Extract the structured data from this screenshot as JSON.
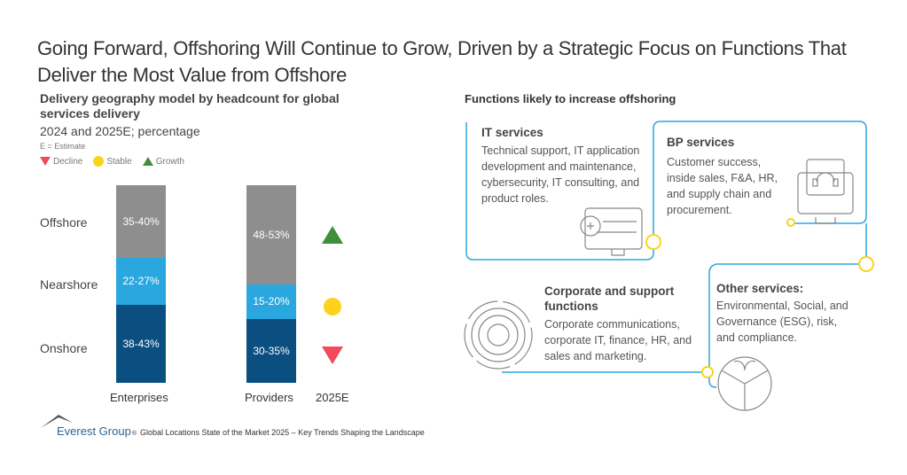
{
  "title": "Going Forward, Offshoring Will Continue to Grow, Driven by a Strategic Focus on Functions That Deliver the Most Value from Offshore",
  "chart_data": {
    "type": "bar",
    "stacked": true,
    "title": "Delivery geography model by headcount for global services delivery",
    "subtitle": "2024 and 2025E; percentage",
    "note": "E = Estimate",
    "categories": [
      "Enterprises",
      "Providers"
    ],
    "series": [
      {
        "name": "Onshore",
        "color": "#0b4f80",
        "values": [
          40.5,
          32.5
        ],
        "labels": [
          "38-43%",
          "30-35%"
        ],
        "trend": "Decline"
      },
      {
        "name": "Nearshore",
        "color": "#2aa7df",
        "values": [
          24.5,
          17.5
        ],
        "labels": [
          "22-27%",
          "15-20%"
        ],
        "trend": "Stable"
      },
      {
        "name": "Offshore",
        "color": "#8e8e8e",
        "values": [
          37.5,
          50.5
        ],
        "labels": [
          "35-40%",
          "48-53%"
        ],
        "trend": "Growth"
      }
    ],
    "trend_column_label": "2025E",
    "trend_legend": [
      {
        "label": "Decline",
        "color": "#f04a5c",
        "icon": "triangle-down"
      },
      {
        "label": "Stable",
        "color": "#fcd21c",
        "icon": "circle"
      },
      {
        "label": "Growth",
        "color": "#3f8f3a",
        "icon": "triangle-up"
      }
    ]
  },
  "functions": {
    "title": "Functions likely to increase offshoring",
    "accent": "#2aa7df",
    "items": [
      {
        "heading": "IT services",
        "text": "Technical support, IT application development and maintenance, cybersecurity, IT consulting, and product roles.",
        "icon": "computer-wrench-icon"
      },
      {
        "heading": "BP services",
        "text": "Customer success, inside sales, F&A, HR, and supply chain and procurement.",
        "icon": "headset-monitor-icon"
      },
      {
        "heading": "Corporate and support functions",
        "text": "Corporate communications, corporate IT, finance, HR, and sales and marketing.",
        "icon": "gear-icon"
      },
      {
        "heading": "Other services:",
        "text": "Environmental, Social, and Governance (ESG), risk, and compliance.",
        "icon": "esg-icon"
      }
    ]
  },
  "footer": {
    "brand": "Everest Group",
    "reg": "®",
    "source": "Global Locations State of the Market 2025 – Key Trends Shaping the Landscape"
  }
}
